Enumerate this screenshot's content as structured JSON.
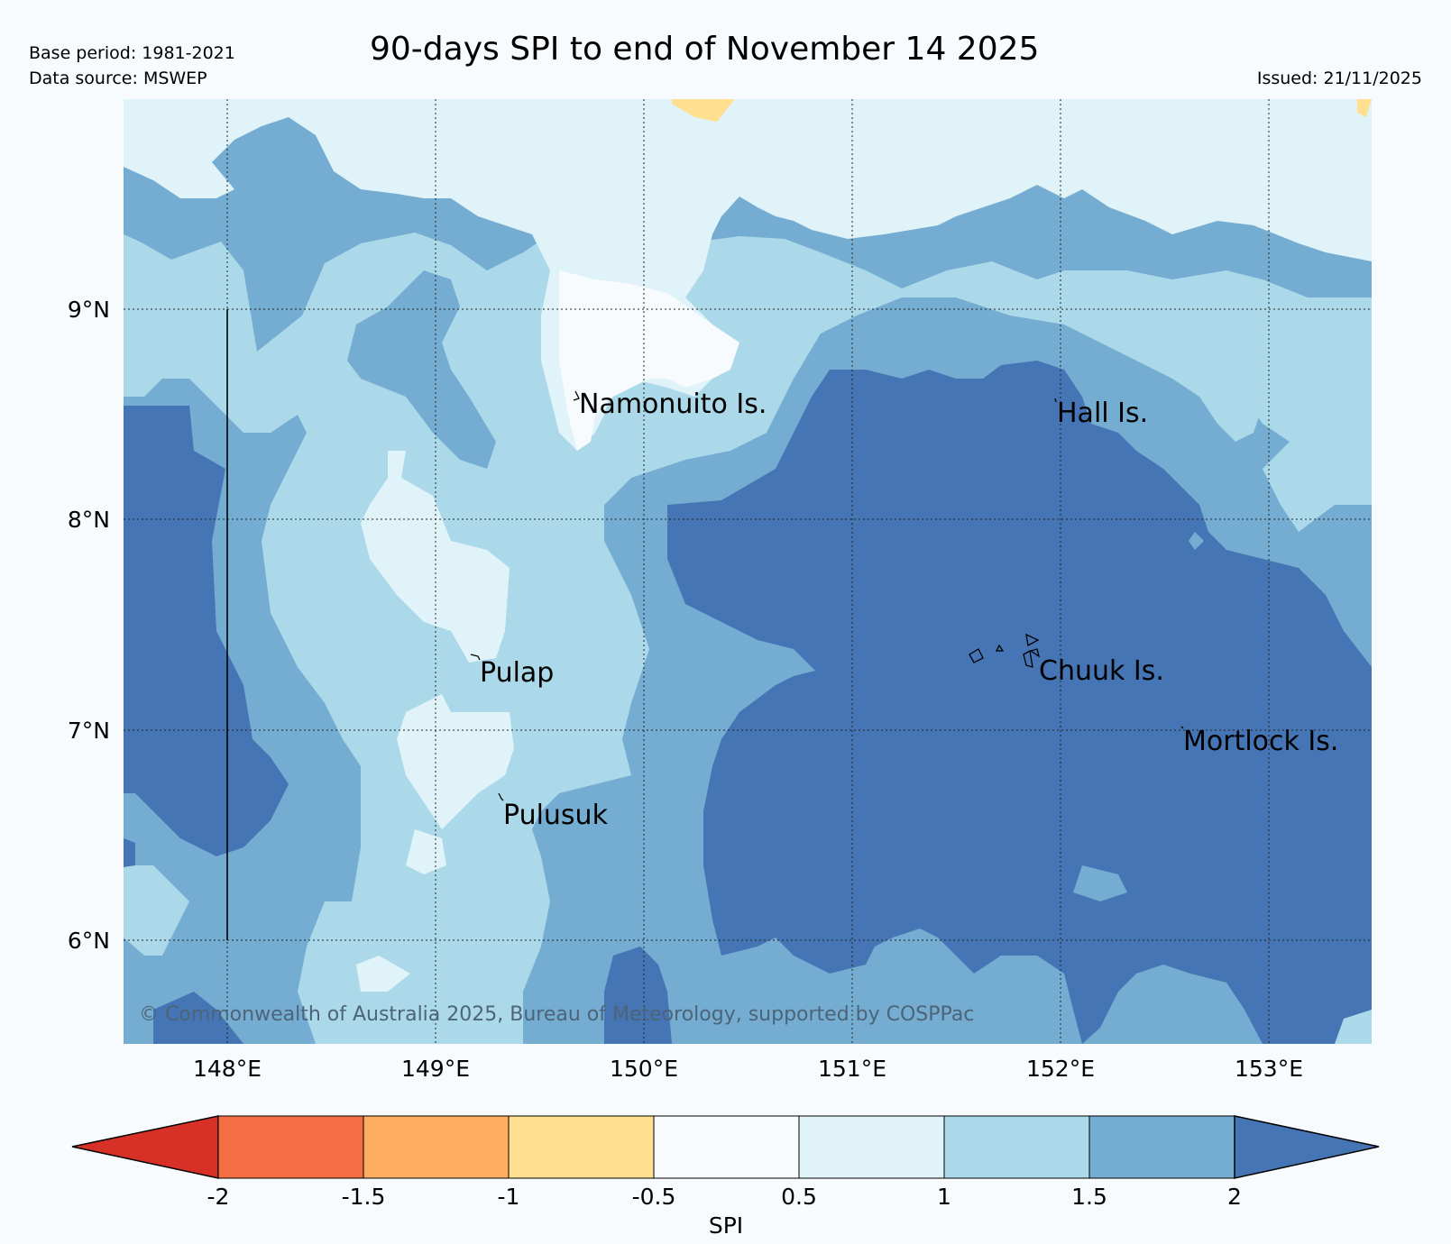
{
  "header": {
    "base_period": "Base period: 1981-2021",
    "data_source": "Data source: MSWEP",
    "title": "90-days SPI to end of November 14 2025",
    "issued": "Issued: 21/11/2025"
  },
  "map": {
    "copyright": "© Commonwealth of Australia 2025, Bureau of Meteorology, supported by COSPPac",
    "lat_labels": [
      "9°N",
      "8°N",
      "7°N",
      "6°N"
    ],
    "lon_labels": [
      "148°E",
      "149°E",
      "150°E",
      "151°E",
      "152°E",
      "153°E"
    ],
    "places": {
      "namonuito": "Namonuito Is.",
      "hall": "Hall Is.",
      "pulap": "Pulap",
      "chuuk": "Chuuk Is.",
      "mortlock": "Mortlock Is.",
      "pulusuk": "Pulusuk"
    }
  },
  "legend": {
    "label": "SPI",
    "ticks": [
      "-2",
      "-1.5",
      "-1",
      "-0.5",
      "0.5",
      "1",
      "1.5",
      "2"
    ],
    "colors": [
      "#d73027",
      "#f46d43",
      "#fdae61",
      "#fee090",
      "#f7fbfd",
      "#e0f3f8",
      "#abd9e9",
      "#74add1",
      "#4575b4"
    ]
  }
}
